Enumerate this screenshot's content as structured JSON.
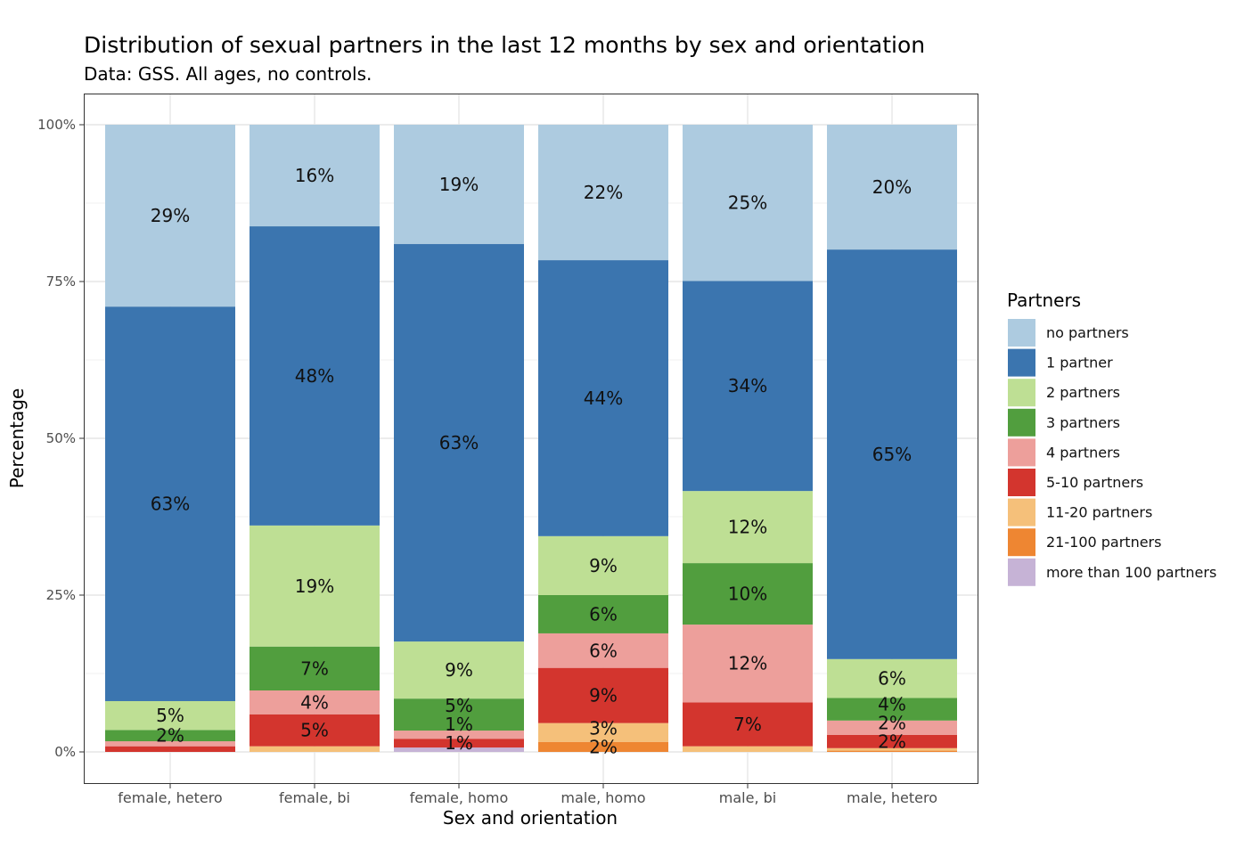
{
  "chart_data": {
    "type": "bar",
    "stacked": true,
    "title": "Distribution of sexual partners in the last 12 months by sex and orientation",
    "subtitle": "Data: GSS. All ages, no controls.",
    "xlabel": "Sex and orientation",
    "ylabel": "Percentage",
    "ylim": [
      0,
      100
    ],
    "yticks": [
      0,
      25,
      50,
      75,
      100
    ],
    "ytick_labels": [
      "0%",
      "25%",
      "50%",
      "75%",
      "100%"
    ],
    "grid": true,
    "legend_title": "Partners",
    "legend_position": "right",
    "categories": [
      "female, hetero",
      "female, bi",
      "female, homo",
      "male, homo",
      "male, bi",
      "male, hetero"
    ],
    "series": [
      {
        "name": "no partners",
        "color": "#adcbe0",
        "values": [
          29.0,
          16.2,
          19.0,
          21.6,
          24.9,
          19.9
        ]
      },
      {
        "name": "1 partner",
        "color": "#3b75af",
        "values": [
          62.9,
          47.7,
          63.4,
          44.0,
          33.5,
          65.3
        ]
      },
      {
        "name": "2 partners",
        "color": "#bedf94",
        "values": [
          4.6,
          19.3,
          9.1,
          9.4,
          11.5,
          6.2
        ]
      },
      {
        "name": "3 partners",
        "color": "#519e3e",
        "values": [
          1.8,
          7.0,
          5.1,
          6.1,
          9.8,
          3.6
        ]
      },
      {
        "name": "4 partners",
        "color": "#ed9f9b",
        "values": [
          0.8,
          3.8,
          1.3,
          5.5,
          12.4,
          2.3
        ]
      },
      {
        "name": "5-10 partners",
        "color": "#d3352e",
        "values": [
          0.9,
          5.1,
          1.4,
          8.8,
          7.0,
          2.1
        ]
      },
      {
        "name": "11-20 partners",
        "color": "#f5c07a",
        "values": [
          0,
          0.9,
          0,
          3.0,
          0.9,
          0.4
        ]
      },
      {
        "name": "21-100 partners",
        "color": "#ee8632",
        "values": [
          0,
          0,
          0,
          1.6,
          0,
          0.2
        ]
      },
      {
        "name": "more than 100 partners",
        "color": "#c6b3d6",
        "values": [
          0,
          0,
          0.7,
          0,
          0,
          0
        ]
      }
    ]
  }
}
